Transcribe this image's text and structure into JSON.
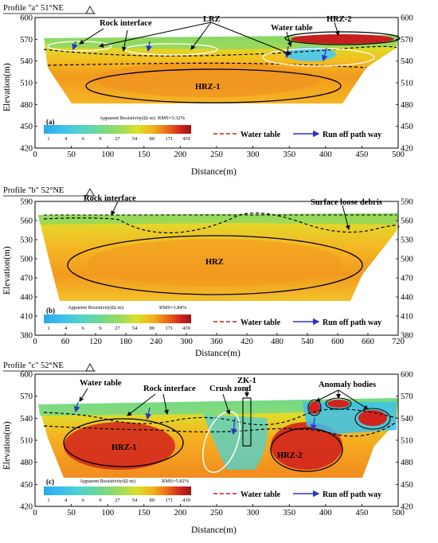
{
  "panels": [
    {
      "profile_label": "Profile \"a\"  51°NE",
      "panel_letter": "(a)",
      "x_ticks": [
        "0",
        "50",
        "100",
        "150",
        "200",
        "250",
        "300",
        "350",
        "400",
        "450",
        "500"
      ],
      "y_ticks": [
        "420",
        "450",
        "480",
        "510",
        "540",
        "570",
        "600"
      ],
      "x_label": "Distance(m)",
      "y_label": "Elevation(m)",
      "colorbar_title": "Apparent Resistivity(Ω·m)",
      "colorbar_values": [
        "1",
        "4",
        "6",
        "9",
        "27",
        "54",
        "80",
        "171",
        "439"
      ],
      "rms": "RMS=3.32%",
      "legend_water_table": "Water table",
      "legend_runoff": "Run off path way",
      "annotations": {
        "rock_interface": "Rock interface",
        "lrz": "LRZ",
        "water_table": "Water table",
        "hrz2": "HRZ-2",
        "hrz1": "HRZ-1"
      }
    },
    {
      "profile_label": "Profile \"b\"  52°NE",
      "panel_letter": "(b)",
      "x_ticks": [
        "0",
        "60",
        "120",
        "180",
        "240",
        "300",
        "360",
        "420",
        "480",
        "540",
        "600",
        "660",
        "720"
      ],
      "y_ticks": [
        "380",
        "410",
        "440",
        "470",
        "500",
        "530",
        "560",
        "590"
      ],
      "x_label": "Distance(m)",
      "y_label": "Elevation(m)",
      "colorbar_title": "Apparent Resistivity(Ω·m)",
      "colorbar_values": [
        "1",
        "4",
        "6",
        "9",
        "27",
        "54",
        "80",
        "171",
        "439"
      ],
      "rms": "RMS=3.84%",
      "legend_water_table": "Water table",
      "legend_runoff": "Run off path way",
      "annotations": {
        "rock_interface": "Rock interface",
        "surface_debris": "Surface loose debris",
        "hrz": "HRZ"
      }
    },
    {
      "profile_label": "Profile \"c\"  52°NE",
      "panel_letter": "(c)",
      "x_ticks": [
        "0",
        "50",
        "100",
        "150",
        "200",
        "250",
        "300",
        "350",
        "400",
        "450",
        "500"
      ],
      "y_ticks": [
        "420",
        "450",
        "480",
        "510",
        "540",
        "570",
        "600"
      ],
      "x_label": "Distance(m)",
      "y_label": "Elevation(m)",
      "colorbar_title": "Apparent Resistivity(Ω·m)",
      "colorbar_values": [
        "1",
        "4",
        "6",
        "9",
        "27",
        "54",
        "80",
        "171",
        "439"
      ],
      "rms": "RMS=5.82%",
      "legend_water_table": "Water table",
      "legend_runoff": "Run off path way",
      "annotations": {
        "water_table": "Water table",
        "rock_interface": "Rock interface",
        "crush_zone": "Crush zond",
        "zk1": "ZK-1",
        "anomaly": "Anomaly bodies",
        "hrz1": "HRZ-1",
        "hrz2": "HRZ-2"
      }
    }
  ],
  "colors": {
    "colorbar": [
      "#2aa9e8",
      "#3cc0ec",
      "#52d2cc",
      "#6fd98f",
      "#9bdc5c",
      "#d9e02a",
      "#f2b21b",
      "#ea6a1a",
      "#d1231c",
      "#9e1414"
    ],
    "water_table_line": "#c81e1e",
    "runoff_arrow": "#2a35c8"
  },
  "chart_data": [
    {
      "type": "heatmap",
      "title": "Profile \"a\"  51°NE",
      "xlabel": "Distance(m)",
      "ylabel": "Elevation(m)",
      "xlim": [
        0,
        500
      ],
      "ylim": [
        420,
        600
      ]
    },
    {
      "type": "heatmap",
      "title": "Profile \"b\"  52°NE",
      "xlabel": "Distance(m)",
      "ylabel": "Elevation(m)",
      "xlim": [
        0,
        750
      ],
      "ylim": [
        380,
        590
      ]
    },
    {
      "type": "heatmap",
      "title": "Profile \"c\"  52°NE",
      "xlabel": "Distance(m)",
      "ylabel": "Elevation(m)",
      "xlim": [
        0,
        500
      ],
      "ylim": [
        420,
        600
      ]
    }
  ]
}
